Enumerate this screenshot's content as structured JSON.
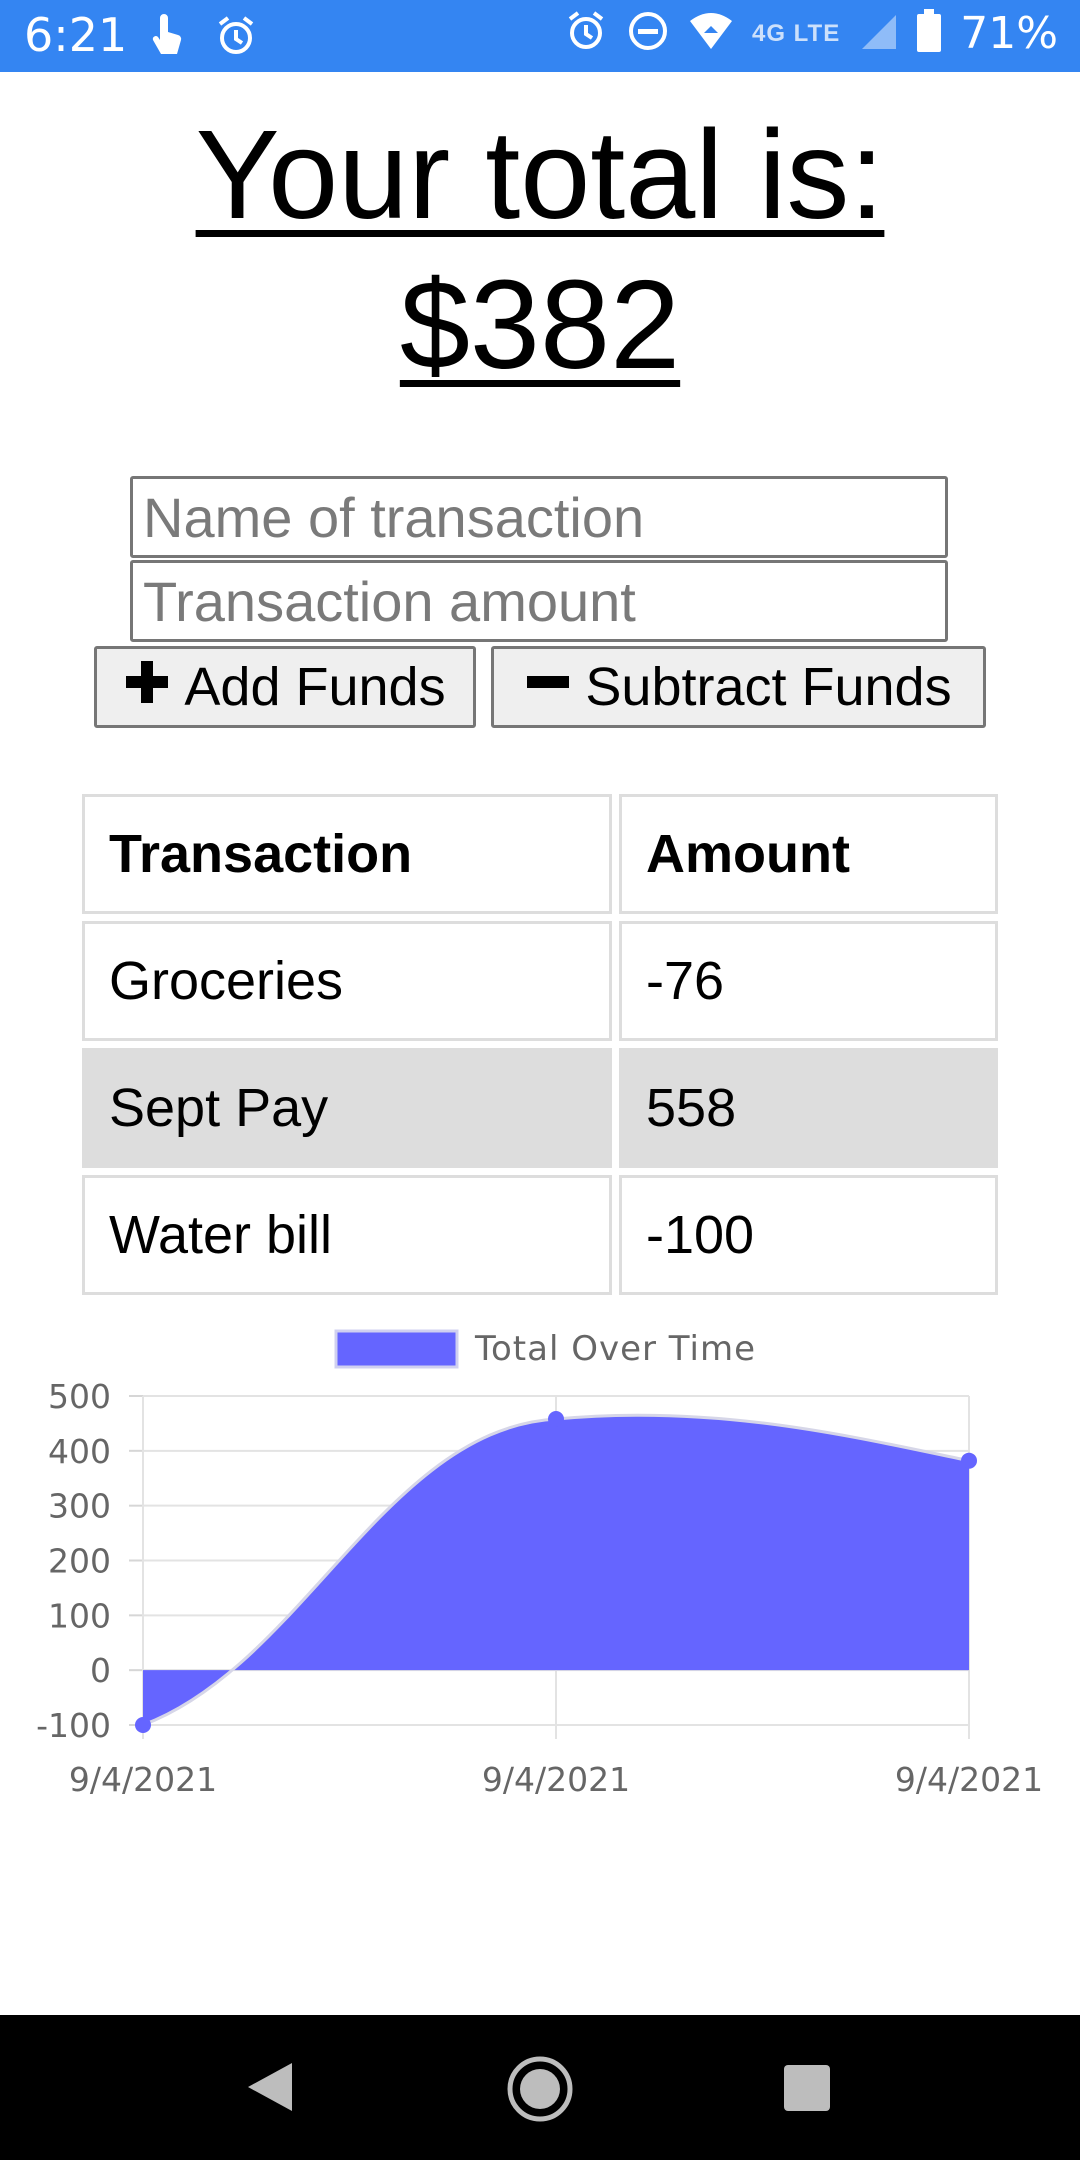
{
  "status_bar": {
    "time": "6:21",
    "network": "4G LTE",
    "battery_percent": "71%",
    "icons": [
      "touch-icon",
      "alarm-icon",
      "alarm-icon",
      "do-not-disturb-icon",
      "wifi-icon",
      "signal-icon",
      "battery-icon"
    ]
  },
  "header": {
    "line1": "Your total is:",
    "line2": "$382"
  },
  "form": {
    "name_placeholder": "Name of transaction",
    "amount_placeholder": "Transaction amount",
    "add_label": "Add Funds",
    "subtract_label": "Subtract Funds"
  },
  "table": {
    "headers": [
      "Transaction",
      "Amount"
    ],
    "rows": [
      {
        "name": "Groceries",
        "amount": "-76"
      },
      {
        "name": "Sept Pay",
        "amount": "558"
      },
      {
        "name": "Water bill",
        "amount": "-100"
      }
    ]
  },
  "chart_data": {
    "type": "area",
    "legend": "Total Over Time",
    "legend_position": "top",
    "x": [
      "9/4/2021",
      "9/4/2021",
      "9/4/2021"
    ],
    "series": [
      {
        "name": "Total Over Time",
        "values": [
          -100,
          458,
          382
        ]
      }
    ],
    "ylim": [
      -100,
      500
    ],
    "yticks": [
      -100,
      0,
      100,
      200,
      300,
      400,
      500
    ],
    "grid": true,
    "color": "#6565ff"
  },
  "nav_bar": {
    "icons": [
      "back-icon",
      "home-icon",
      "recents-icon"
    ]
  }
}
